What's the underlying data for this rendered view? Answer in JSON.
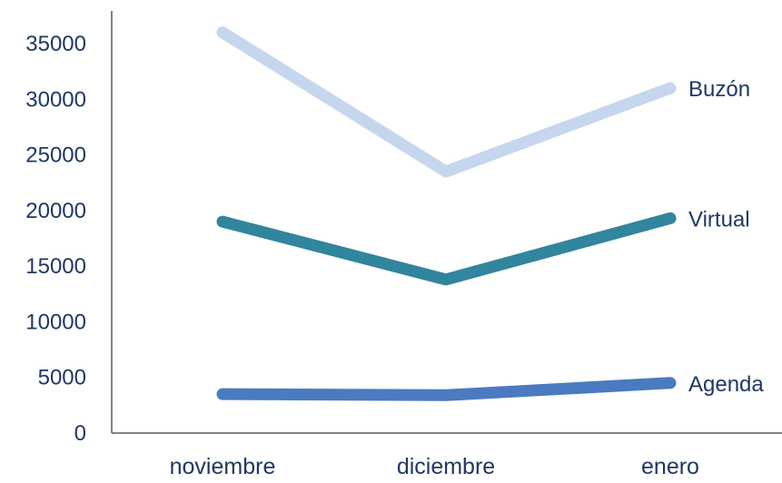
{
  "chart_data": {
    "type": "line",
    "categories": [
      "noviembre",
      "diciembre",
      "enero"
    ],
    "ylim": [
      0,
      35000
    ],
    "yticks": [
      0,
      5000,
      10000,
      15000,
      20000,
      25000,
      30000,
      35000
    ],
    "grid": false,
    "legend": "series labels at end of lines",
    "series": [
      {
        "name": "Buzón",
        "values": [
          36000,
          23500,
          31000
        ],
        "color": "#c6d6ee"
      },
      {
        "name": "Virtual",
        "values": [
          19000,
          13800,
          19300
        ],
        "color": "#31859c"
      },
      {
        "name": "Agenda",
        "values": [
          3500,
          3400,
          4500
        ],
        "color": "#4a7abf"
      }
    ]
  }
}
